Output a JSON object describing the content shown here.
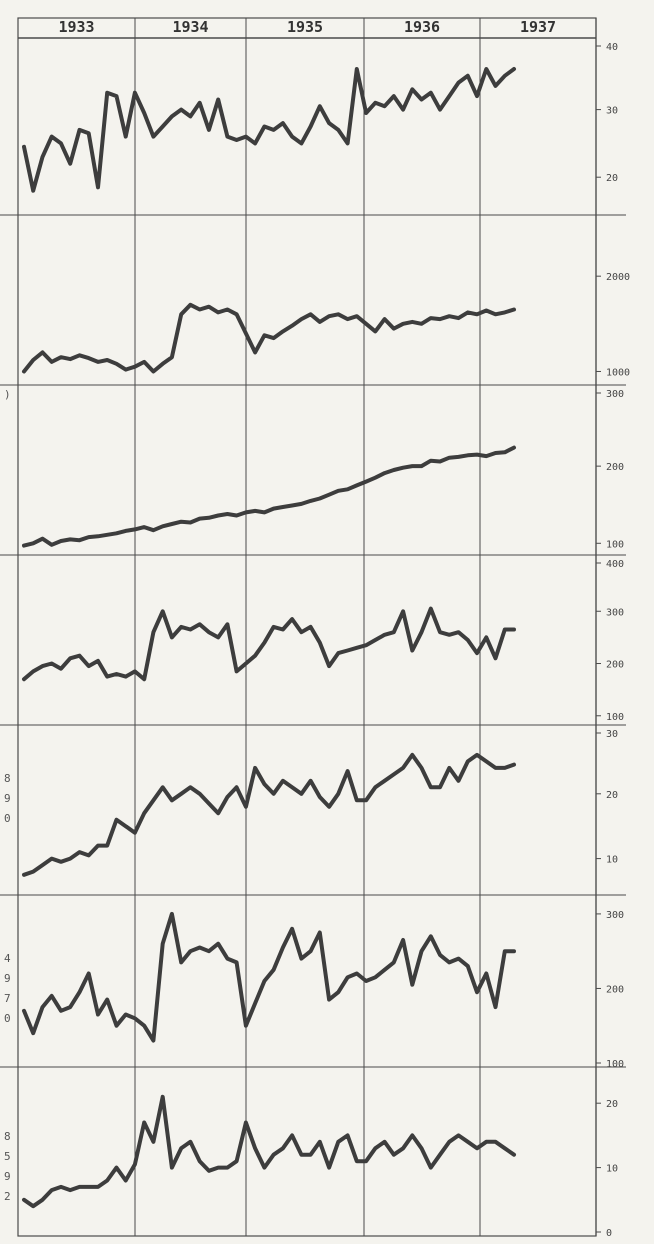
{
  "page": {
    "background": "#f4f3ee",
    "ink": "#4a4a4a",
    "line_color": "#3d3d3d"
  },
  "chart_data": {
    "type": "line",
    "title": "",
    "years": [
      "1933",
      "1934",
      "1935",
      "1936",
      "1937"
    ],
    "x_unit": "month index (0 = Jan 1933)",
    "left_margin_fragments": [
      "",
      ")",
      "8",
      "9",
      "0",
      "4",
      "9",
      "7",
      "0",
      "8",
      "5",
      "9",
      "2"
    ],
    "panels": [
      {
        "ylim": [
          15,
          40
        ],
        "ticks": [
          20,
          30,
          40
        ],
        "tick_labels": [
          "20",
          "30",
          "40"
        ],
        "x": [
          0,
          1,
          2,
          3,
          4,
          5,
          6,
          7,
          8,
          9,
          10,
          11,
          12,
          13,
          14,
          15,
          16,
          17,
          18,
          19,
          20,
          21,
          22,
          23,
          24,
          25,
          26,
          27,
          28,
          29,
          30,
          31,
          32,
          33,
          34,
          35,
          36,
          37,
          38,
          39,
          40,
          41,
          42,
          43,
          44,
          45,
          46,
          47,
          48,
          49,
          50,
          51,
          52,
          53
        ],
        "y": [
          24.5,
          18,
          23,
          26,
          25,
          22,
          27,
          26.5,
          18.5,
          32.5,
          32,
          26,
          32.5,
          29.5,
          26,
          27.5,
          29,
          30,
          29,
          31,
          27,
          31.5,
          26,
          25.5,
          26,
          25,
          27.5,
          27,
          28,
          26,
          25,
          27.5,
          30.5,
          28,
          27,
          25,
          36,
          29.5,
          31,
          30.5,
          32,
          30,
          33,
          31.5,
          32.5,
          30,
          32,
          34,
          35,
          32,
          36,
          33.5,
          35,
          36
        ]
      },
      {
        "ylim": [
          900,
          2600
        ],
        "ticks": [
          1000,
          2000
        ],
        "tick_labels": [
          "1000",
          "2000"
        ],
        "x": [
          0,
          1,
          2,
          3,
          4,
          5,
          6,
          7,
          8,
          9,
          10,
          11,
          12,
          13,
          14,
          15,
          16,
          17,
          18,
          19,
          20,
          21,
          22,
          23,
          24,
          25,
          26,
          27,
          28,
          29,
          30,
          31,
          32,
          33,
          34,
          35,
          36,
          37,
          38,
          39,
          40,
          41,
          42,
          43,
          44,
          45,
          46,
          47,
          48,
          49,
          50,
          51,
          52,
          53
        ],
        "y": [
          1000,
          1120,
          1200,
          1100,
          1150,
          1130,
          1170,
          1140,
          1100,
          1120,
          1080,
          1020,
          1050,
          1100,
          1000,
          1080,
          1150,
          1600,
          1700,
          1650,
          1680,
          1620,
          1650,
          1600,
          1400,
          1200,
          1380,
          1350,
          1420,
          1480,
          1550,
          1600,
          1520,
          1580,
          1600,
          1550,
          1580,
          1500,
          1420,
          1550,
          1450,
          1500,
          1520,
          1500,
          1560,
          1550,
          1580,
          1560,
          1620,
          1600,
          1640,
          1600,
          1620,
          1650
        ]
      },
      {
        "ylim": [
          90,
          300
        ],
        "ticks": [
          100,
          200,
          300
        ],
        "tick_labels": [
          "100",
          "200",
          "300"
        ],
        "x": [
          0,
          1,
          2,
          3,
          4,
          5,
          6,
          7,
          8,
          9,
          10,
          11,
          12,
          13,
          14,
          15,
          16,
          17,
          18,
          19,
          20,
          21,
          22,
          23,
          24,
          25,
          26,
          27,
          28,
          29,
          30,
          31,
          32,
          33,
          34,
          35,
          36,
          37,
          38,
          39,
          40,
          41,
          42,
          43,
          44,
          45,
          46,
          47,
          48,
          49,
          50,
          51,
          52,
          53
        ],
        "y": [
          97,
          100,
          106,
          98,
          103,
          105,
          104,
          108,
          109,
          111,
          113,
          116,
          118,
          121,
          117,
          122,
          125,
          128,
          127,
          132,
          133,
          136,
          138,
          136,
          140,
          142,
          140,
          145,
          147,
          149,
          151,
          155,
          158,
          163,
          168,
          170,
          175,
          180,
          185,
          191,
          195,
          198,
          200,
          200,
          207,
          206,
          211,
          212,
          214,
          215,
          213,
          217,
          218,
          224
        ]
      },
      {
        "ylim": [
          90,
          400
        ],
        "ticks": [
          100,
          200,
          300,
          400
        ],
        "tick_labels": [
          "100",
          "200",
          "300",
          "400"
        ],
        "x": [
          0,
          1,
          2,
          3,
          4,
          5,
          6,
          7,
          8,
          9,
          10,
          11,
          12,
          13,
          14,
          15,
          16,
          17,
          18,
          19,
          20,
          21,
          22,
          23,
          24,
          25,
          26,
          27,
          28,
          29,
          30,
          31,
          32,
          33,
          34,
          35,
          36,
          37,
          38,
          39,
          40,
          41,
          42,
          43,
          44,
          45,
          46,
          47,
          48,
          49,
          50,
          51,
          52,
          53
        ],
        "y": [
          170,
          185,
          195,
          200,
          190,
          210,
          215,
          195,
          205,
          175,
          180,
          175,
          185,
          170,
          260,
          300,
          250,
          270,
          265,
          275,
          260,
          250,
          275,
          185,
          200,
          215,
          240,
          270,
          265,
          285,
          260,
          270,
          240,
          195,
          220,
          225,
          230,
          235,
          245,
          255,
          260,
          300,
          225,
          260,
          305,
          260,
          255,
          260,
          245,
          220,
          250,
          210,
          265,
          265
        ]
      },
      {
        "ylim": [
          5,
          30
        ],
        "ticks": [
          10,
          20,
          30
        ],
        "tick_labels": [
          "10",
          "20",
          "30"
        ],
        "x": [
          0,
          1,
          2,
          3,
          4,
          5,
          6,
          7,
          8,
          9,
          10,
          11,
          12,
          13,
          14,
          15,
          16,
          17,
          18,
          19,
          20,
          21,
          22,
          23,
          24,
          25,
          26,
          27,
          28,
          29,
          30,
          31,
          32,
          33,
          34,
          35,
          36,
          37,
          38,
          39,
          40,
          41,
          42,
          43,
          44,
          45,
          46,
          47,
          48,
          49,
          50,
          51,
          52,
          53
        ],
        "y": [
          7.5,
          8,
          9,
          10,
          9.5,
          10,
          11,
          10.5,
          12,
          12,
          16,
          15,
          14,
          17,
          19,
          21,
          19,
          20,
          21,
          20,
          18.5,
          17,
          19.5,
          21,
          18,
          24,
          21.5,
          20,
          22,
          21,
          20,
          22,
          19.5,
          18,
          20,
          23.5,
          19,
          19,
          21,
          22,
          23,
          24,
          26,
          24,
          21,
          21,
          24,
          22,
          25,
          26,
          25,
          24,
          24,
          24.5
        ]
      },
      {
        "ylim": [
          100,
          320
        ],
        "ticks": [
          100,
          200,
          300
        ],
        "tick_labels": [
          "100",
          "200",
          "300"
        ],
        "x": [
          0,
          1,
          2,
          3,
          4,
          5,
          6,
          7,
          8,
          9,
          10,
          11,
          12,
          13,
          14,
          15,
          16,
          17,
          18,
          19,
          20,
          21,
          22,
          23,
          24,
          25,
          26,
          27,
          28,
          29,
          30,
          31,
          32,
          33,
          34,
          35,
          36,
          37,
          38,
          39,
          40,
          41,
          42,
          43,
          44,
          45,
          46,
          47,
          48,
          49,
          50,
          51,
          52,
          53
        ],
        "y": [
          170,
          140,
          175,
          190,
          170,
          175,
          195,
          220,
          165,
          185,
          150,
          165,
          160,
          150,
          130,
          260,
          300,
          235,
          250,
          255,
          250,
          260,
          240,
          235,
          150,
          180,
          210,
          225,
          255,
          280,
          240,
          250,
          275,
          185,
          195,
          215,
          220,
          210,
          215,
          225,
          235,
          265,
          205,
          250,
          270,
          245,
          235,
          240,
          230,
          195,
          220,
          175,
          250,
          250
        ]
      },
      {
        "ylim": [
          0,
          25
        ],
        "ticks": [
          0,
          10,
          20
        ],
        "tick_labels": [
          "0",
          "10",
          "20"
        ],
        "x": [
          0,
          1,
          2,
          3,
          4,
          5,
          6,
          7,
          8,
          9,
          10,
          11,
          12,
          13,
          14,
          15,
          16,
          17,
          18,
          19,
          20,
          21,
          22,
          23,
          24,
          25,
          26,
          27,
          28,
          29,
          30,
          31,
          32,
          33,
          34,
          35,
          36,
          37,
          38,
          39,
          40,
          41,
          42,
          43,
          44,
          45,
          46,
          47,
          48,
          49,
          50,
          51,
          52,
          53
        ],
        "y": [
          5,
          4,
          5,
          6.5,
          7,
          6.5,
          7,
          7,
          7,
          8,
          10,
          8,
          10.5,
          17,
          14,
          21,
          10,
          13,
          14,
          11,
          9.5,
          10,
          10,
          11,
          17,
          13,
          10,
          12,
          13,
          15,
          12,
          12,
          14,
          10,
          14,
          15,
          11,
          11,
          13,
          14,
          12,
          13,
          15,
          13,
          10,
          12,
          14,
          15,
          14,
          13,
          14,
          14,
          13,
          12
        ]
      }
    ]
  }
}
